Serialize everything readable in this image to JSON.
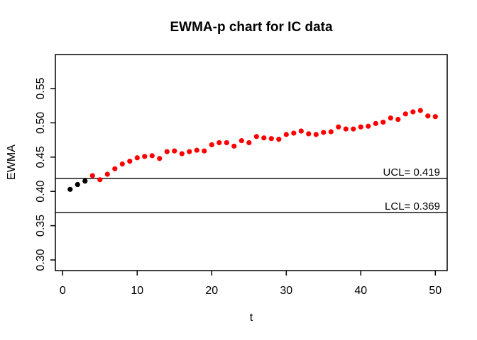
{
  "chart_data": {
    "type": "scatter",
    "title": "EWMA-p chart for IC data",
    "xlabel": "t",
    "ylabel": "EWMA",
    "x_ticks": [
      0,
      10,
      20,
      30,
      40,
      50
    ],
    "y_ticks": [
      0.3,
      0.35,
      0.4,
      0.45,
      0.5,
      0.55
    ],
    "y_tick_labels": [
      "0.30",
      "0.35",
      "0.40",
      "0.45",
      "0.50",
      "0.55"
    ],
    "xlim": [
      -0.98,
      51.59
    ],
    "ylim": [
      0.2845,
      0.5996
    ],
    "grid": false,
    "legend": "none",
    "series": [
      {
        "name": "EWMA",
        "marker": "filled-circle",
        "x": [
          1,
          2,
          3,
          4,
          5,
          6,
          7,
          8,
          9,
          10,
          11,
          12,
          13,
          14,
          15,
          16,
          17,
          18,
          19,
          20,
          21,
          22,
          23,
          24,
          25,
          26,
          27,
          28,
          29,
          30,
          31,
          32,
          33,
          34,
          35,
          36,
          37,
          38,
          39,
          40,
          41,
          42,
          43,
          44,
          45,
          46,
          47,
          48,
          49,
          50
        ],
        "y": [
          0.403,
          0.41,
          0.415,
          0.423,
          0.417,
          0.425,
          0.433,
          0.44,
          0.444,
          0.449,
          0.451,
          0.452,
          0.448,
          0.458,
          0.459,
          0.455,
          0.458,
          0.46,
          0.459,
          0.468,
          0.471,
          0.471,
          0.466,
          0.474,
          0.471,
          0.48,
          0.478,
          0.477,
          0.476,
          0.483,
          0.485,
          0.488,
          0.484,
          0.483,
          0.486,
          0.487,
          0.494,
          0.491,
          0.491,
          0.494,
          0.495,
          0.499,
          0.501,
          0.507,
          0.505,
          0.513,
          0.516,
          0.518,
          0.51,
          0.509
        ],
        "leading_black_count": 3,
        "leading_color": "#000000",
        "default_color": "#ff0000"
      }
    ],
    "control_limits": {
      "ucl": {
        "value": 0.419,
        "label": "UCL= 0.419"
      },
      "lcl": {
        "value": 0.369,
        "label": "LCL= 0.369"
      }
    },
    "colors": {
      "point_red": "#ff0000",
      "point_black": "#000000",
      "line": "#000000",
      "text": "#000000",
      "background": "#ffffff"
    }
  }
}
